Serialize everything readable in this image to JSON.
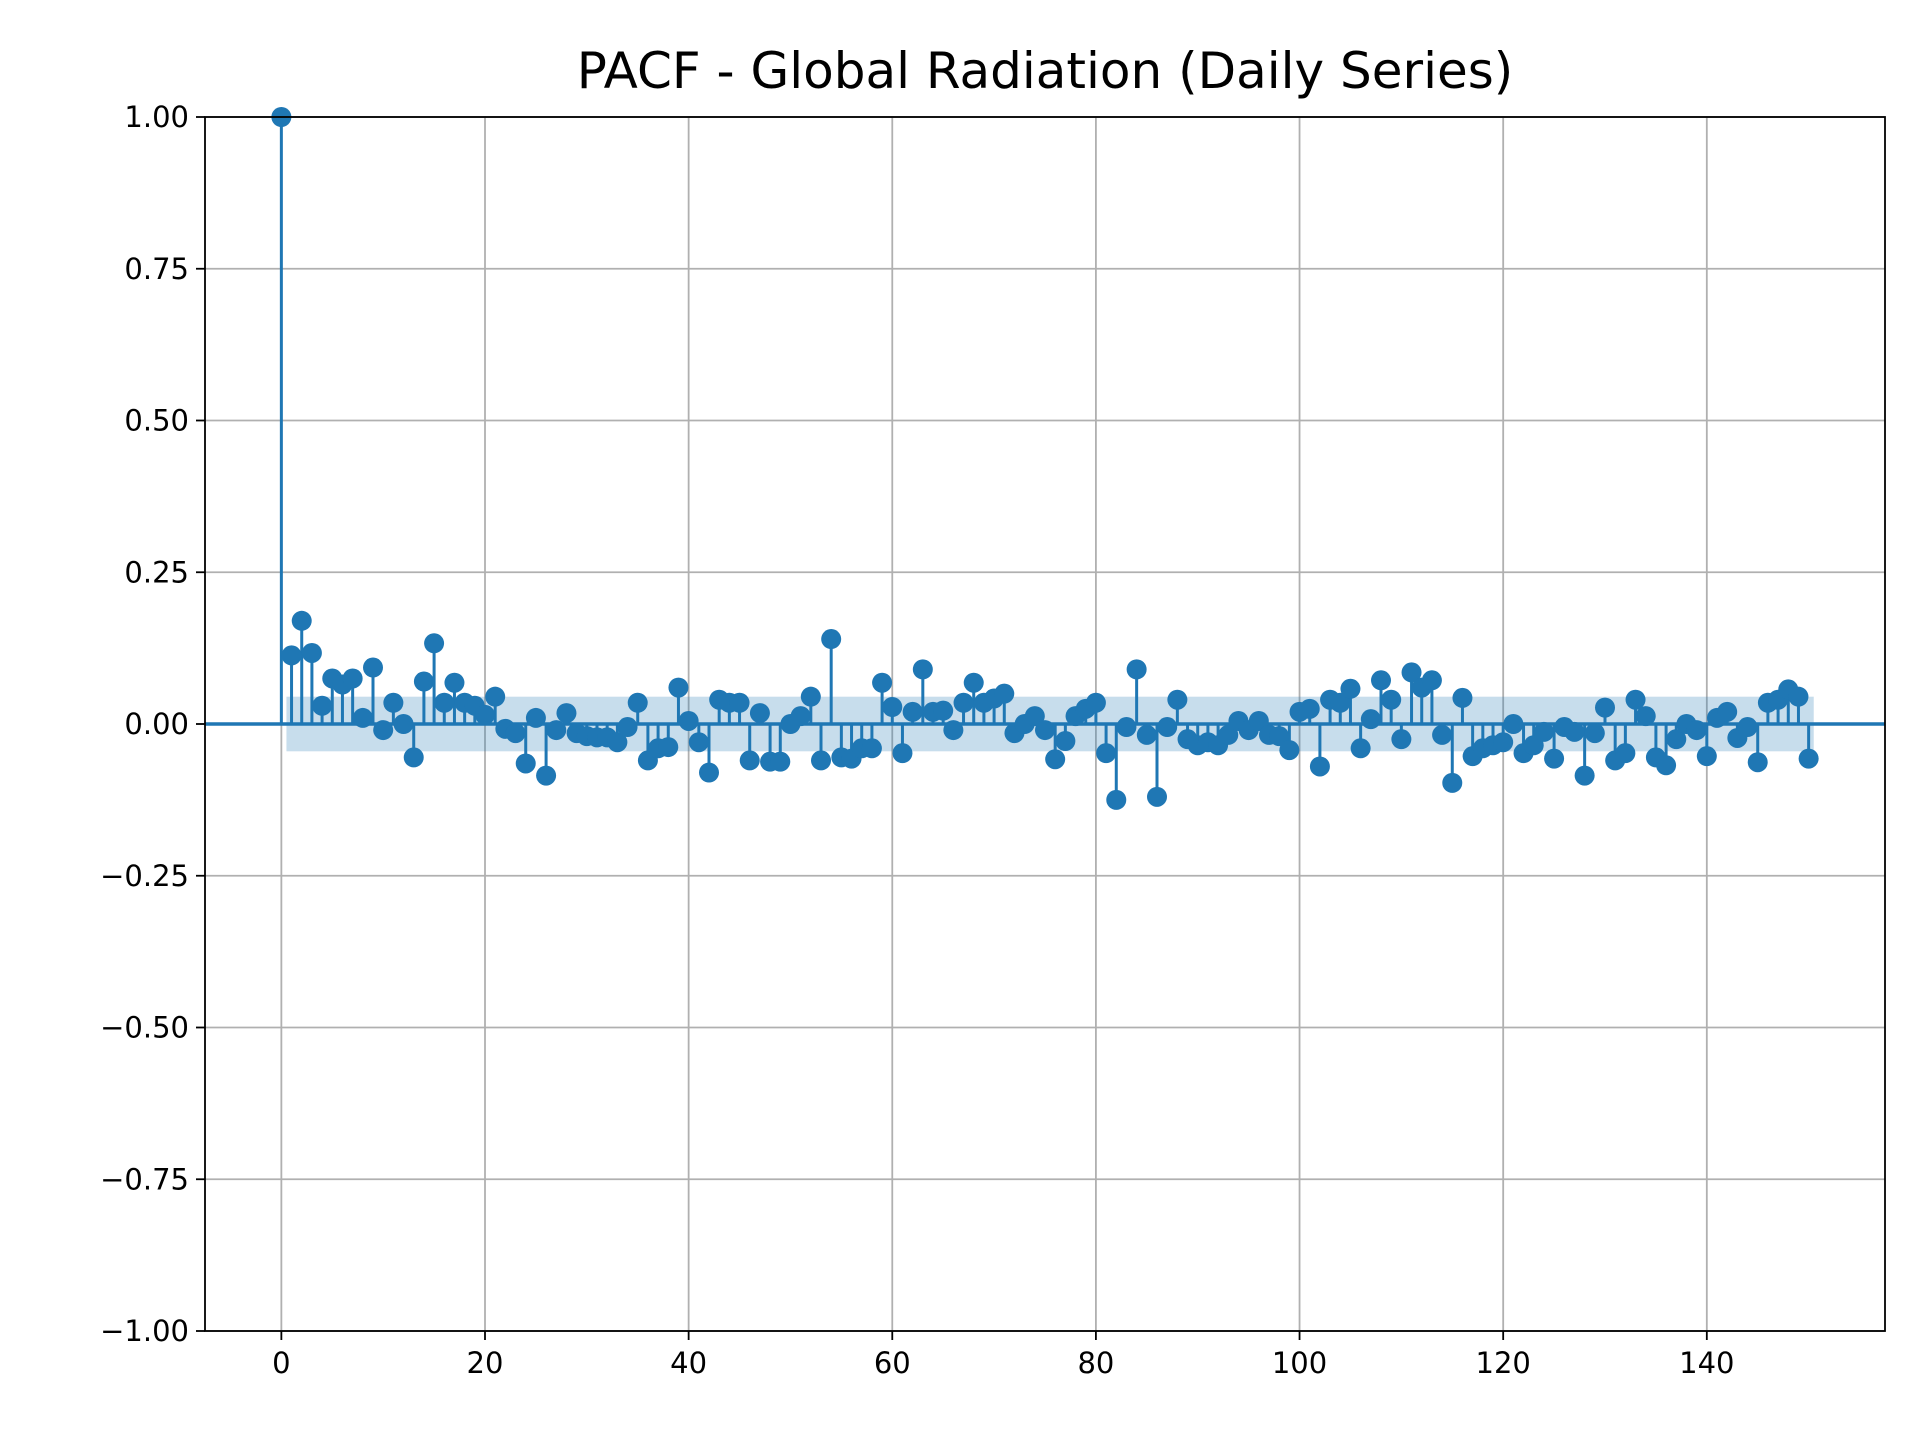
{
  "chart_data": {
    "type": "scatter",
    "subtype": "stem",
    "title": "PACF - Global Radiation (Daily Series)",
    "xlabel": "",
    "ylabel": "",
    "xlim": [
      -7.5,
      157.5
    ],
    "ylim": [
      -1.0,
      1.0
    ],
    "x_ticks": [
      0,
      20,
      40,
      60,
      80,
      100,
      120,
      140
    ],
    "x_tick_labels": [
      "0",
      "20",
      "40",
      "60",
      "80",
      "100",
      "120",
      "140"
    ],
    "y_ticks": [
      1.0,
      0.75,
      0.5,
      0.25,
      0.0,
      -0.25,
      -0.5,
      -0.75,
      -1.0
    ],
    "y_tick_labels": [
      "1.00",
      "0.75",
      "0.50",
      "0.25",
      "0.00",
      "−0.25",
      "−0.50",
      "−0.75",
      "−1.00"
    ],
    "grid": true,
    "colors": {
      "series": "#1f77b4",
      "band": "#1f77b4",
      "grid": "#b0b0b0",
      "axes": "#000000"
    },
    "confidence_band": {
      "x_start": 0.5,
      "x_end": 150.5,
      "lower": -0.045,
      "upper": 0.045
    },
    "series": [
      {
        "x": [
          0,
          1,
          2,
          3,
          4,
          5,
          6,
          7,
          8,
          9,
          10,
          11,
          12,
          13,
          14,
          15,
          16,
          17,
          18,
          19,
          20,
          21,
          22,
          23,
          24,
          25,
          26,
          27,
          28,
          29,
          30,
          31,
          32,
          33,
          34,
          35,
          36,
          37,
          38,
          39,
          40,
          41,
          42,
          43,
          44,
          45,
          46,
          47,
          48,
          49,
          50,
          51,
          52,
          53,
          54,
          55,
          56,
          57,
          58,
          59,
          60,
          61,
          62,
          63,
          64,
          65,
          66,
          67,
          68,
          69,
          70,
          71,
          72,
          73,
          74,
          75,
          76,
          77,
          78,
          79,
          80,
          81,
          82,
          83,
          84,
          85,
          86,
          87,
          88,
          89,
          90,
          91,
          92,
          93,
          94,
          95,
          96,
          97,
          98,
          99,
          100,
          101,
          102,
          103,
          104,
          105,
          106,
          107,
          108,
          109,
          110,
          111,
          112,
          113,
          114,
          115,
          116,
          117,
          118,
          119,
          120,
          121,
          122,
          123,
          124,
          125,
          126,
          127,
          128,
          129,
          130,
          131,
          132,
          133,
          134,
          135,
          136,
          137,
          138,
          139,
          140,
          141,
          142,
          143,
          144,
          145,
          146,
          147,
          148,
          149,
          150
        ],
        "values": [
          1.0,
          0.113,
          0.17,
          0.117,
          0.03,
          0.075,
          0.065,
          0.075,
          0.01,
          0.093,
          -0.01,
          0.035,
          0.0,
          -0.055,
          0.07,
          0.133,
          0.035,
          0.068,
          0.035,
          0.03,
          0.015,
          0.045,
          -0.008,
          -0.015,
          -0.065,
          0.01,
          -0.085,
          -0.01,
          0.018,
          -0.015,
          -0.02,
          -0.022,
          -0.022,
          -0.03,
          -0.005,
          0.035,
          -0.06,
          -0.04,
          -0.038,
          0.06,
          0.005,
          -0.03,
          -0.08,
          0.04,
          0.035,
          0.035,
          -0.06,
          0.018,
          -0.062,
          -0.062,
          0.0,
          0.013,
          0.045,
          -0.06,
          0.14,
          -0.055,
          -0.057,
          -0.04,
          -0.04,
          0.068,
          0.028,
          -0.048,
          0.02,
          0.09,
          0.02,
          0.022,
          -0.01,
          0.035,
          0.068,
          0.035,
          0.042,
          0.05,
          -0.015,
          0.0,
          0.013,
          -0.01,
          -0.058,
          -0.028,
          0.013,
          0.025,
          0.035,
          -0.048,
          -0.125,
          -0.005,
          0.09,
          -0.018,
          -0.12,
          -0.005,
          0.04,
          -0.025,
          -0.035,
          -0.03,
          -0.035,
          -0.018,
          0.005,
          -0.01,
          0.005,
          -0.018,
          -0.02,
          -0.043,
          0.02,
          0.025,
          -0.07,
          0.04,
          0.035,
          0.058,
          -0.04,
          0.008,
          0.072,
          0.04,
          -0.025,
          0.085,
          0.06,
          0.072,
          -0.018,
          -0.097,
          0.043,
          -0.053,
          -0.04,
          -0.035,
          -0.03,
          0.0,
          -0.048,
          -0.035,
          -0.013,
          -0.057,
          -0.005,
          -0.013,
          -0.085,
          -0.015,
          0.027,
          -0.06,
          -0.048,
          0.04,
          0.013,
          -0.055,
          -0.068,
          -0.025,
          0.0,
          -0.01,
          -0.053,
          0.01,
          0.02,
          -0.023,
          -0.005,
          -0.063,
          0.035,
          0.04,
          0.057,
          0.045,
          -0.057
        ]
      }
    ]
  }
}
